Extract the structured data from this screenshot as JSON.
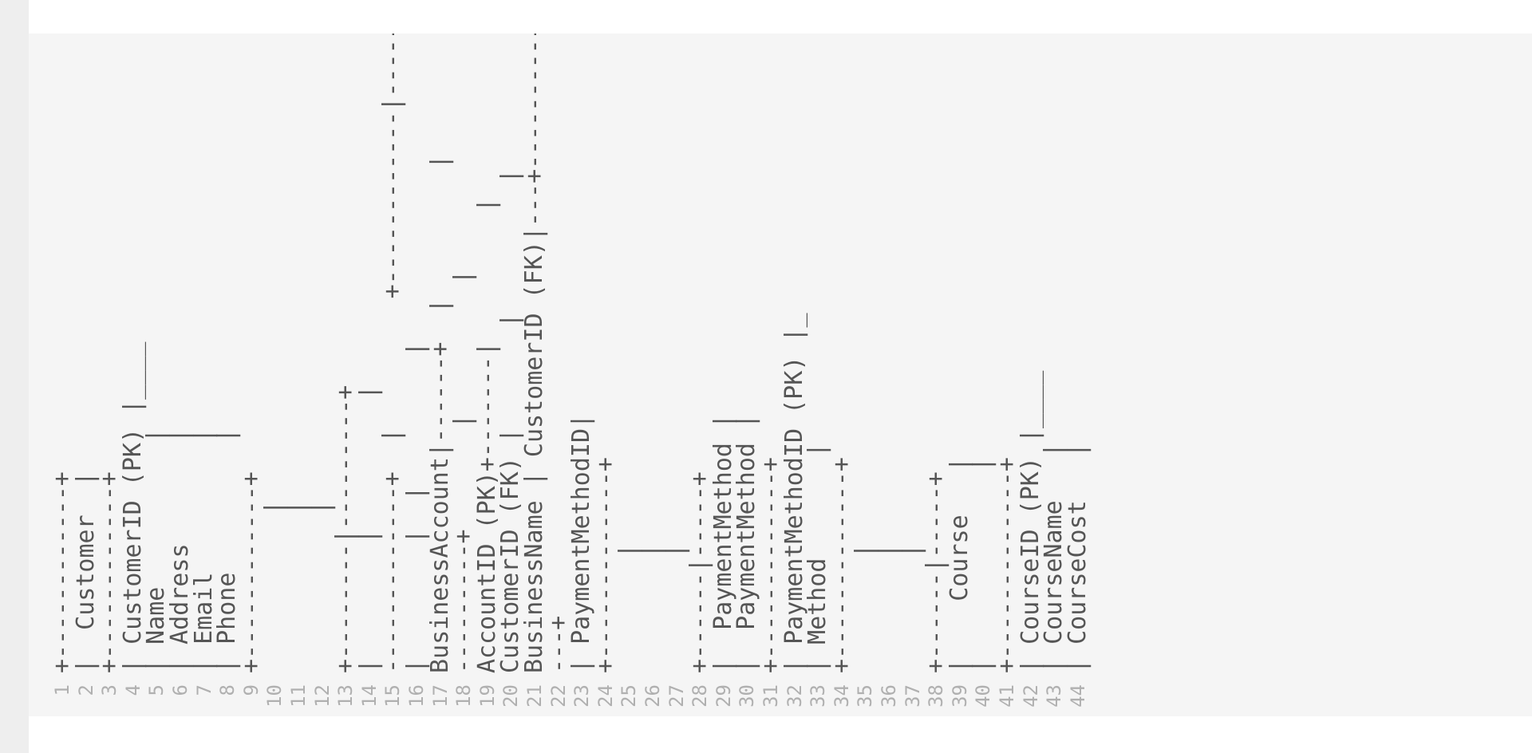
{
  "code_block": {
    "language": "text",
    "lines": [
      {
        "number": "1",
        "text": "+------------+"
      },
      {
        "number": "2",
        "text": "|  Customer  |"
      },
      {
        "number": "3",
        "text": "+------------+"
      },
      {
        "number": "4",
        "text": "| CustomerID (PK) |____"
      },
      {
        "number": "5",
        "text": "| Name          |"
      },
      {
        "number": "6",
        "text": "| Address       |"
      },
      {
        "number": "7",
        "text": "| Email         |"
      },
      {
        "number": "8",
        "text": "| Phone         |"
      },
      {
        "number": "9",
        "text": "+------------+"
      },
      {
        "number": "10",
        "text": "           |"
      },
      {
        "number": "11",
        "text": "           |"
      },
      {
        "number": "12",
        "text": "           |"
      },
      {
        "number": "13",
        "text": "+--------|---------+"
      },
      {
        "number": "14",
        "text": "|        |         |"
      },
      {
        "number": "15",
        "text": "-------------+  |         +------------|-------"
      },
      {
        "number": "16",
        "text": "|        |  |         |"
      },
      {
        "number": "17",
        "text": "BusinessAccount|------+  |         |"
      },
      {
        "number": "18",
        "text": "---------+       |         |"
      },
      {
        "number": "19",
        "text": "AccountID (PK)+-------|         |"
      },
      {
        "number": "20",
        "text": "CustomerID (FK) |       |         |"
      },
      {
        "number": "21",
        "text": "BusinessName | CustomerID (FK)|---+-----------+"
      },
      {
        "number": "22",
        "text": "---+"
      },
      {
        "number": "23",
        "text": "| PaymentMethodID|"
      },
      {
        "number": "24",
        "text": "+-------------+"
      },
      {
        "number": "25",
        "text": "        |"
      },
      {
        "number": "26",
        "text": "        |"
      },
      {
        "number": "27",
        "text": "        |"
      },
      {
        "number": "28",
        "text": "+------|-----+"
      },
      {
        "number": "29",
        "text": "|  PaymentMethod |"
      },
      {
        "number": "30",
        "text": "|  PaymentMethod |"
      },
      {
        "number": "31",
        "text": "+-------------+"
      },
      {
        "number": "32",
        "text": "| PaymentMethodID (PK) |_"
      },
      {
        "number": "33",
        "text": "| Method       |"
      },
      {
        "number": "34",
        "text": "+-------------+"
      },
      {
        "number": "35",
        "text": "        |"
      },
      {
        "number": "36",
        "text": "        |"
      },
      {
        "number": "37",
        "text": "        |"
      },
      {
        "number": "38",
        "text": "+------|-----+"
      },
      {
        "number": "39",
        "text": "|    Course   |"
      },
      {
        "number": "40",
        "text": "|             |"
      },
      {
        "number": "41",
        "text": "+-------------+"
      },
      {
        "number": "42",
        "text": "| CourseID (PK) |____"
      },
      {
        "number": "43",
        "text": "| CourseName   |"
      },
      {
        "number": "44",
        "text": "| CourseCost   |"
      }
    ]
  }
}
